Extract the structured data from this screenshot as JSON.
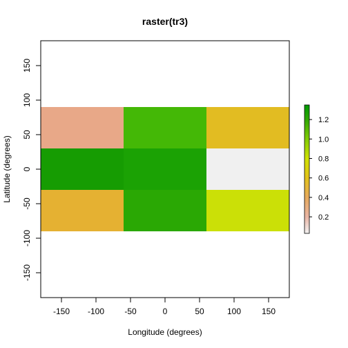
{
  "chart_data": {
    "type": "heatmap",
    "title": "raster(tr3)",
    "xlabel": "Longitude (degrees)",
    "ylabel": "Latitude (degrees)",
    "xlim": [
      -180,
      180
    ],
    "ylim": [
      -186,
      186
    ],
    "x_ticks": [
      -150,
      -100,
      -50,
      0,
      50,
      100,
      150
    ],
    "y_ticks": [
      -150,
      -100,
      -50,
      0,
      50,
      100,
      150
    ],
    "x_tick_labels": [
      "-150",
      "-100",
      "-50",
      "0",
      "50",
      "100",
      "150"
    ],
    "y_tick_labels": [
      "-150",
      "-100",
      "-50",
      "0",
      "50",
      "100",
      "150"
    ],
    "grid": false,
    "cell_x_edges": [
      -180,
      -60,
      60,
      180
    ],
    "cell_y_edges": [
      90,
      30,
      -30,
      -90
    ],
    "cells": [
      [
        {
          "value": 0.35,
          "color": "#e8a888"
        },
        {
          "value": 1.07,
          "color": "#44b806"
        },
        {
          "value": 0.55,
          "color": "#e2bc22"
        }
      ],
      [
        {
          "value": 1.22,
          "color": "#169c02"
        },
        {
          "value": 1.17,
          "color": "#1ba204"
        },
        {
          "value": 0.03,
          "color": "#f0f0f0"
        }
      ],
      [
        {
          "value": 0.53,
          "color": "#e5b132"
        },
        {
          "value": 1.12,
          "color": "#2aa804"
        },
        {
          "value": 0.82,
          "color": "#cbe007"
        }
      ]
    ],
    "legend": {
      "placement": "right",
      "min": 0.03,
      "max": 1.35,
      "ticks": [
        0.2,
        0.4,
        0.6,
        0.8,
        1.0,
        1.2
      ],
      "tick_labels": [
        "0.2",
        "0.4",
        "0.6",
        "0.8",
        "1.0",
        "1.2"
      ],
      "color_stops": [
        {
          "value": 0.03,
          "color": "#f2f2f2"
        },
        {
          "value": 0.2,
          "color": "#e8b4a4"
        },
        {
          "value": 0.4,
          "color": "#e6a95c"
        },
        {
          "value": 0.6,
          "color": "#e2c21a"
        },
        {
          "value": 0.8,
          "color": "#cfe100"
        },
        {
          "value": 1.0,
          "color": "#82cc03"
        },
        {
          "value": 1.2,
          "color": "#30a802"
        },
        {
          "value": 1.35,
          "color": "#009a00"
        }
      ]
    }
  }
}
